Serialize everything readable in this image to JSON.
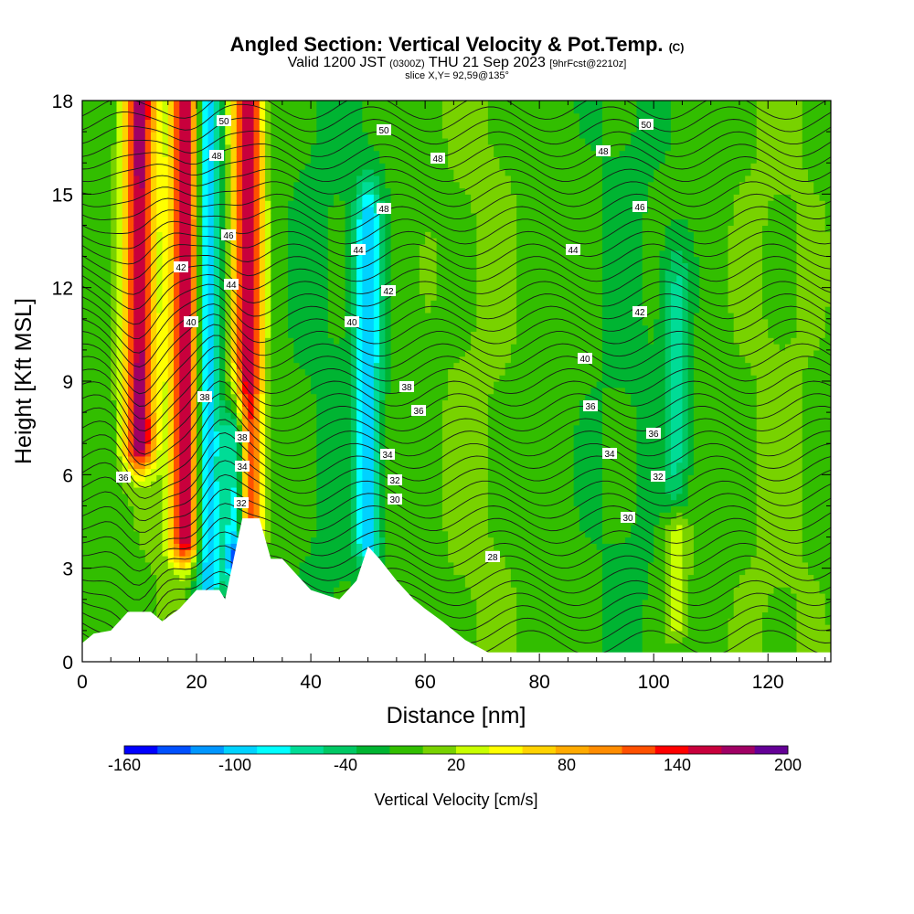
{
  "chart_data": {
    "type": "heatmap",
    "title": "Angled Section: Vertical Velocity & Pot.Temp.",
    "title_suffix": "(C)",
    "subtitle_main": "Valid 1200 JST",
    "subtitle_utc": "(0300Z)",
    "subtitle_date": "THU 21 Sep 2023",
    "subtitle_fcst": "[9hrFcst@2210z]",
    "slice_label": "slice X,Y= 92,59@135°",
    "xlabel": "Distance [nm]",
    "ylabel": "Height [Kft MSL]",
    "xlim": [
      0,
      131
    ],
    "ylim": [
      0,
      18
    ],
    "x_ticks": [
      "0",
      "20",
      "40",
      "60",
      "80",
      "100",
      "120"
    ],
    "y_ticks": [
      "0",
      "3",
      "6",
      "9",
      "12",
      "15",
      "18"
    ],
    "colorbar": {
      "label": "Vertical Velocity [cm/s]",
      "ticks": [
        "-160",
        "-100",
        "-40",
        "20",
        "80",
        "140",
        "200"
      ],
      "min": -160,
      "max": 200,
      "step": 20,
      "colors": [
        "#0000ff",
        "#0050ff",
        "#0096ff",
        "#00d2ff",
        "#00ffff",
        "#00dc96",
        "#00c864",
        "#00b432",
        "#32be00",
        "#78d200",
        "#c8ff00",
        "#ffff00",
        "#ffd200",
        "#ffaa00",
        "#ff8c00",
        "#ff5000",
        "#ff0000",
        "#c8003c",
        "#a00064",
        "#640096"
      ]
    },
    "contour_labels": [
      "50",
      "50",
      "50",
      "48",
      "48",
      "48",
      "48",
      "46",
      "46",
      "44",
      "44",
      "44",
      "42",
      "42",
      "42",
      "40",
      "40",
      "40",
      "38",
      "38",
      "38",
      "36",
      "36",
      "36",
      "34",
      "34",
      "34",
      "32",
      "32",
      "32",
      "30",
      "30",
      "28",
      "36"
    ],
    "velocity_features": [
      {
        "x": 10,
        "top": 18,
        "bottom": 7,
        "peak": 200
      },
      {
        "x": 18,
        "top": 18,
        "bottom": 4,
        "peak": 190
      },
      {
        "x": 29,
        "top": 18,
        "bottom": 4.6,
        "peak": 200
      },
      {
        "x": 22,
        "top": 18,
        "bottom": 2.5,
        "peak": -110
      },
      {
        "x": 27,
        "top": 7,
        "bottom": 3.3,
        "peak": -150
      },
      {
        "x": 50,
        "top": 14,
        "bottom": 4,
        "peak": -90
      },
      {
        "x": 104,
        "top": 12,
        "bottom": 5.5,
        "peak": -40
      },
      {
        "x": 104,
        "top": 4,
        "bottom": 1.5,
        "peak": 60
      }
    ],
    "terrain_kft": [
      [
        0,
        0.6
      ],
      [
        2,
        0.9
      ],
      [
        5,
        1.0
      ],
      [
        8,
        1.6
      ],
      [
        12,
        1.6
      ],
      [
        14,
        1.3
      ],
      [
        17,
        1.7
      ],
      [
        20,
        2.3
      ],
      [
        24,
        2.3
      ],
      [
        25,
        2.0
      ],
      [
        28,
        4.6
      ],
      [
        31,
        4.6
      ],
      [
        33,
        3.3
      ],
      [
        35,
        3.3
      ],
      [
        37,
        2.9
      ],
      [
        40,
        2.3
      ],
      [
        45,
        2.0
      ],
      [
        48,
        2.6
      ],
      [
        50,
        3.7
      ],
      [
        52,
        3.3
      ],
      [
        55,
        2.6
      ],
      [
        58,
        2.0
      ],
      [
        60,
        1.7
      ],
      [
        63,
        1.3
      ],
      [
        67,
        0.7
      ],
      [
        71,
        0.3
      ],
      [
        131,
        0.3
      ]
    ]
  }
}
